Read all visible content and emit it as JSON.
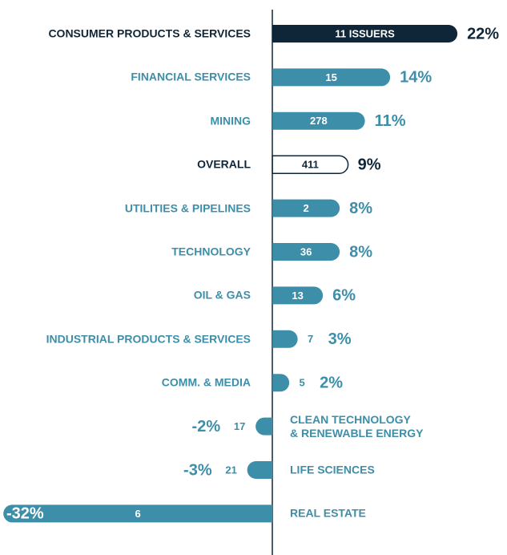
{
  "chart_data": {
    "type": "bar",
    "orientation": "horizontal",
    "categories": [
      "CONSUMER PRODUCTS & SERVICES",
      "FINANCIAL SERVICES",
      "MINING",
      "OVERALL",
      "UTILITIES & PIPELINES",
      "TECHNOLOGY",
      "OIL & GAS",
      "INDUSTRIAL PRODUCTS & SERVICES",
      "COMM. & MEDIA",
      "CLEAN TECHNOLOGY\n& RENEWABLE ENERGY",
      "LIFE SCIENCES",
      "REAL ESTATE"
    ],
    "values": [
      22,
      14,
      11,
      9,
      8,
      8,
      6,
      3,
      2,
      -2,
      -3,
      -32
    ],
    "value_labels": [
      "22%",
      "14%",
      "11%",
      "9%",
      "8%",
      "8%",
      "6%",
      "3%",
      "2%",
      "-2%",
      "-3%",
      "-32%"
    ],
    "issuer_counts": [
      {
        "value": 11,
        "label": "11 ISSUERS"
      },
      15,
      278,
      411,
      2,
      36,
      13,
      7,
      5,
      17,
      21,
      6
    ],
    "bar_colors": [
      "#0f2638",
      "#3d8ea8",
      "#3d8ea8",
      "#ffffff",
      "#3d8ea8",
      "#3d8ea8",
      "#3d8ea8",
      "#3d8ea8",
      "#3d8ea8",
      "#3d8ea8",
      "#3d8ea8",
      "#3d8ea8"
    ],
    "label_colors": [
      "#0f2638",
      "#3d8ea8",
      "#3d8ea8",
      "#0f2638",
      "#3d8ea8",
      "#3d8ea8",
      "#3d8ea8",
      "#3d8ea8",
      "#3d8ea8",
      "#3d8ea8",
      "#3d8ea8",
      "#3d8ea8"
    ],
    "outline_color": "#0f2638",
    "xlim": [
      -32.4,
      27.9
    ]
  }
}
